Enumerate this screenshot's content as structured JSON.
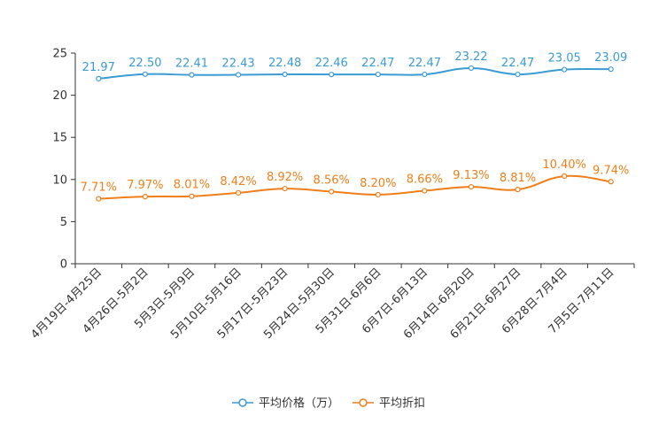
{
  "chart_data": {
    "type": "line",
    "title": "",
    "xlabel": "",
    "ylabel": "",
    "ylim": [
      0,
      25
    ],
    "yticks": [
      0,
      5,
      10,
      15,
      20,
      25
    ],
    "grid": false,
    "legend_position": "bottom-center",
    "categories": [
      "4月19日-4月25日",
      "4月26日-5月2日",
      "5月3日-5月9日",
      "5月10日-5月16日",
      "5月17日-5月23日",
      "5月24日-5月30日",
      "5月31日-6月6日",
      "6月7日-6月13日",
      "6月14日-6月20日",
      "6月21日-6月27日",
      "6月28日-7月4日",
      "7月5日-7月11日"
    ],
    "series": [
      {
        "name": "平均价格（万）",
        "color": "#3a9bd5",
        "values": [
          21.97,
          22.5,
          22.41,
          22.43,
          22.48,
          22.46,
          22.47,
          22.47,
          23.22,
          22.47,
          23.05,
          23.09
        ],
        "labels": [
          "21.97",
          "22.50",
          "22.41",
          "22.43",
          "22.48",
          "22.46",
          "22.47",
          "22.47",
          "23.22",
          "22.47",
          "23.05",
          "23.09"
        ]
      },
      {
        "name": "平均折扣",
        "color": "#f07f1a",
        "values": [
          7.71,
          7.97,
          8.01,
          8.42,
          8.92,
          8.56,
          8.2,
          8.66,
          9.13,
          8.81,
          10.4,
          9.74
        ],
        "labels": [
          "7.71%",
          "7.97%",
          "8.01%",
          "8.42%",
          "8.92%",
          "8.56%",
          "8.20%",
          "8.66%",
          "9.13%",
          "8.81%",
          "10.40%",
          "9.74%"
        ]
      }
    ]
  }
}
